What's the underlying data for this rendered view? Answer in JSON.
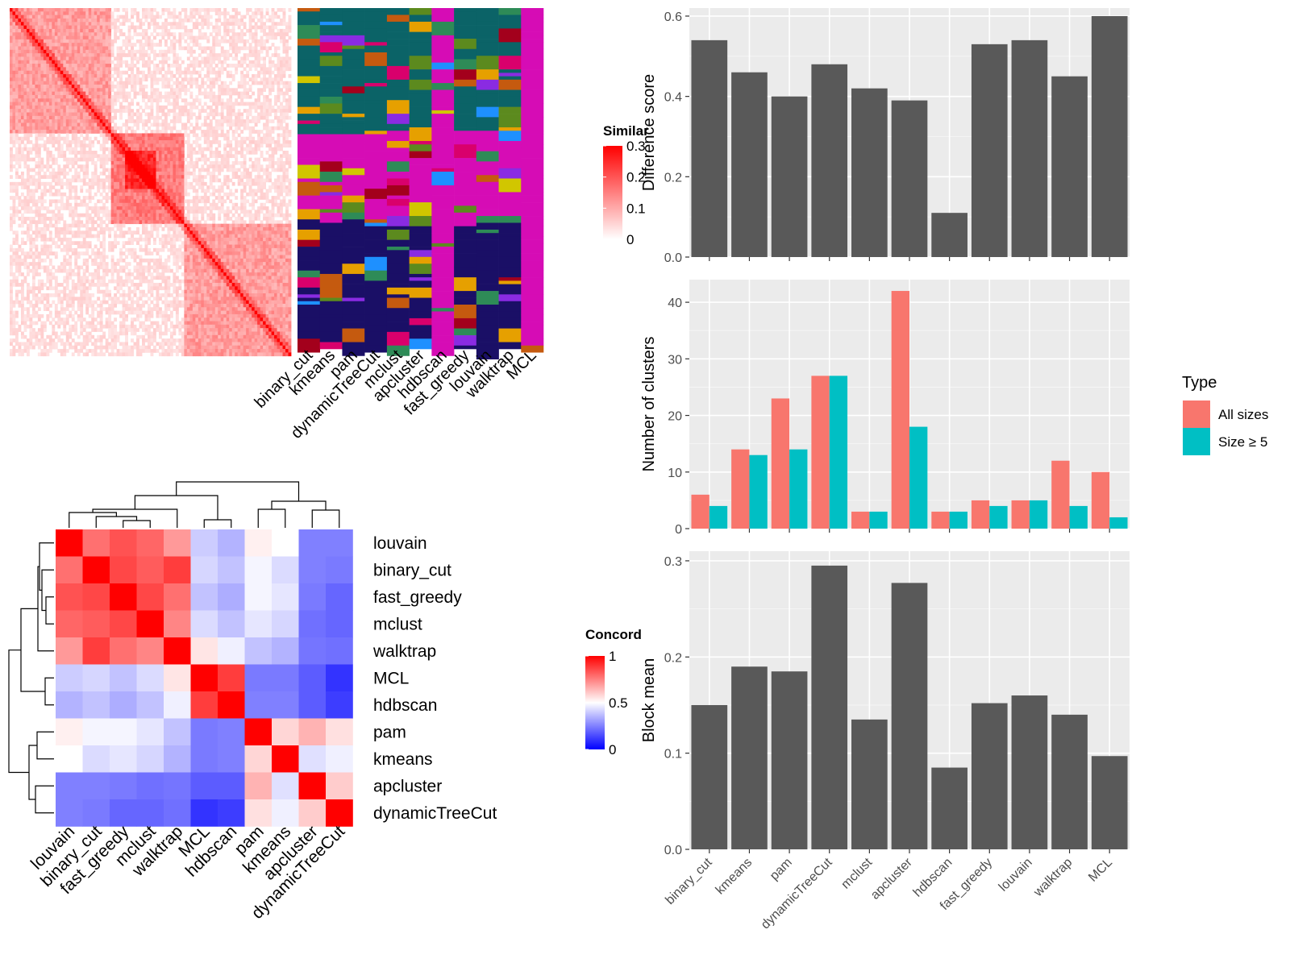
{
  "colors": {
    "panel_bg": "#EBEBEB",
    "grid": "#FFFFFF",
    "bar": "#595959",
    "all_sizes": "#F8766D",
    "size_ge5": "#00BFC4",
    "cluster_palette": [
      "#0B6367",
      "#D60CB5",
      "#1A0F66",
      "#D9006C",
      "#C55A0F",
      "#5C8A1E",
      "#D1C600",
      "#A3001C",
      "#8A2BE2",
      "#E6A000",
      "#2E8B57",
      "#1E90FF"
    ]
  },
  "chart_data": [
    {
      "type": "heatmap",
      "panel": "similarity_matrix",
      "n": 100,
      "legend_title": "Similar",
      "legend_ticks": [
        "0",
        "0.1",
        "0.2",
        "0.3"
      ],
      "legend_range": [
        0,
        0.3
      ],
      "blocks": [
        [
          0,
          36
        ],
        [
          36,
          62
        ],
        [
          62,
          100
        ]
      ]
    },
    {
      "type": "heatmap",
      "panel": "cluster_membership",
      "columns": [
        "binary_cut",
        "kmeans",
        "pam",
        "dynamicTreeCut",
        "mclust",
        "apcluster",
        "hdbscan",
        "fast_greedy",
        "louvain",
        "walktrap",
        "MCL"
      ]
    },
    {
      "type": "heatmap",
      "panel": "concordance",
      "legend_title": "Concord",
      "legend_ticks": [
        "0",
        "0.5",
        "1"
      ],
      "legend_range": [
        0,
        1
      ],
      "rows": [
        "louvain",
        "binary_cut",
        "fast_greedy",
        "mclust",
        "walktrap",
        "MCL",
        "hdbscan",
        "pam",
        "kmeans",
        "apcluster",
        "dynamicTreeCut"
      ],
      "columns": [
        "louvain",
        "binary_cut",
        "fast_greedy",
        "mclust",
        "walktrap",
        "MCL",
        "hdbscan",
        "pam",
        "kmeans",
        "apcluster",
        "dynamicTreeCut"
      ],
      "values": [
        [
          1.0,
          0.78,
          0.84,
          0.8,
          0.7,
          0.4,
          0.35,
          0.53,
          0.5,
          0.25,
          0.25
        ],
        [
          0.78,
          1.0,
          0.86,
          0.82,
          0.88,
          0.42,
          0.38,
          0.48,
          0.43,
          0.25,
          0.24
        ],
        [
          0.84,
          0.86,
          1.0,
          0.86,
          0.78,
          0.38,
          0.34,
          0.48,
          0.45,
          0.24,
          0.2
        ],
        [
          0.8,
          0.82,
          0.86,
          1.0,
          0.74,
          0.43,
          0.38,
          0.45,
          0.42,
          0.22,
          0.2
        ],
        [
          0.7,
          0.88,
          0.78,
          0.74,
          1.0,
          0.55,
          0.47,
          0.38,
          0.35,
          0.23,
          0.22
        ],
        [
          0.4,
          0.42,
          0.38,
          0.43,
          0.55,
          1.0,
          0.88,
          0.24,
          0.24,
          0.18,
          0.1
        ],
        [
          0.35,
          0.38,
          0.34,
          0.38,
          0.47,
          0.88,
          1.0,
          0.25,
          0.25,
          0.18,
          0.12
        ],
        [
          0.53,
          0.48,
          0.48,
          0.45,
          0.38,
          0.24,
          0.25,
          1.0,
          0.58,
          0.65,
          0.56
        ],
        [
          0.5,
          0.43,
          0.45,
          0.42,
          0.35,
          0.24,
          0.25,
          0.58,
          1.0,
          0.44,
          0.47
        ],
        [
          0.25,
          0.25,
          0.24,
          0.22,
          0.23,
          0.18,
          0.18,
          0.65,
          0.44,
          1.0,
          0.6
        ],
        [
          0.25,
          0.24,
          0.2,
          0.2,
          0.22,
          0.1,
          0.12,
          0.56,
          0.47,
          0.6,
          1.0
        ]
      ]
    },
    {
      "type": "bar",
      "panel": "difference_score",
      "ylabel": "Difference score",
      "ylim": [
        0,
        0.62
      ],
      "yticks": [
        0.0,
        0.2,
        0.4,
        0.6
      ],
      "ytick_labels": [
        "0.0",
        "0.2",
        "0.4",
        "0.6"
      ],
      "categories": [
        "binary_cut",
        "kmeans",
        "pam",
        "dynamicTreeCut",
        "mclust",
        "apcluster",
        "hdbscan",
        "fast_greedy",
        "louvain",
        "walktrap",
        "MCL"
      ],
      "values": [
        0.54,
        0.46,
        0.4,
        0.48,
        0.42,
        0.39,
        0.11,
        0.53,
        0.54,
        0.45,
        0.6
      ]
    },
    {
      "type": "bar",
      "panel": "number_of_clusters",
      "ylabel": "Number of clusters",
      "ylim": [
        0,
        44
      ],
      "yticks": [
        0,
        10,
        20,
        30,
        40
      ],
      "ytick_labels": [
        "0",
        "10",
        "20",
        "30",
        "40"
      ],
      "legend_title": "Type",
      "legend_position": "right",
      "categories": [
        "binary_cut",
        "kmeans",
        "pam",
        "dynamicTreeCut",
        "mclust",
        "apcluster",
        "hdbscan",
        "fast_greedy",
        "louvain",
        "walktrap",
        "MCL"
      ],
      "series": [
        {
          "name": "All sizes",
          "values": [
            6,
            14,
            23,
            27,
            3,
            42,
            3,
            5,
            5,
            12,
            10
          ]
        },
        {
          "name": "Size ≥ 5",
          "values": [
            4,
            13,
            14,
            27,
            3,
            18,
            3,
            4,
            5,
            4,
            2
          ]
        }
      ]
    },
    {
      "type": "bar",
      "panel": "block_mean",
      "ylabel": "Block mean",
      "ylim": [
        0,
        0.31
      ],
      "yticks": [
        0.0,
        0.1,
        0.2,
        0.3
      ],
      "ytick_labels": [
        "0.0",
        "0.1",
        "0.2",
        "0.3"
      ],
      "categories": [
        "binary_cut",
        "kmeans",
        "pam",
        "dynamicTreeCut",
        "mclust",
        "apcluster",
        "hdbscan",
        "fast_greedy",
        "louvain",
        "walktrap",
        "MCL"
      ],
      "values": [
        0.15,
        0.19,
        0.185,
        0.295,
        0.135,
        0.277,
        0.085,
        0.152,
        0.16,
        0.14,
        0.097
      ]
    }
  ]
}
